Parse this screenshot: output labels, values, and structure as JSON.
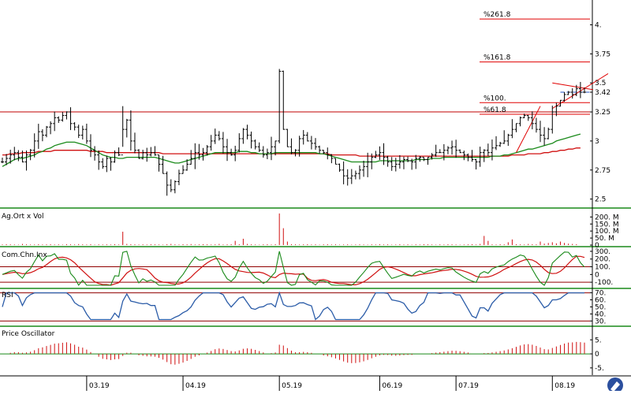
{
  "chart_data": {
    "type": "ohlc",
    "x_axis": {
      "tick_labels": [
        "03.19",
        "04.19",
        "05.19",
        "06.19",
        "07.19",
        "08.19"
      ],
      "tick_bars": [
        21,
        45,
        69,
        94,
        113,
        137
      ]
    },
    "price_panel": {
      "y_ticks": [
        "4.",
        "3.75",
        "3.5",
        "3.42",
        "3.25",
        "3",
        "2.75",
        "2.5"
      ],
      "y_tick_values": [
        4.0,
        3.75,
        3.5,
        3.42,
        3.25,
        3.0,
        2.75,
        2.5
      ],
      "ylim": [
        2.45,
        4.2
      ],
      "current_price": 3.42,
      "horizontal_line": 3.25,
      "fibonacci_levels": [
        {
          "label": "%261.8",
          "value": 4.05
        },
        {
          "label": "%161.8",
          "value": 3.68
        },
        {
          "label": "%100.",
          "value": 3.33
        },
        {
          "label": "%61.8",
          "value": 3.23
        }
      ],
      "close": [
        2.82,
        2.85,
        2.88,
        2.9,
        2.86,
        2.82,
        2.88,
        2.92,
        3.0,
        3.08,
        3.05,
        3.12,
        3.15,
        3.2,
        3.18,
        3.22,
        3.25,
        3.15,
        3.12,
        3.05,
        3.1,
        3.0,
        2.92,
        2.88,
        2.82,
        2.78,
        2.85,
        2.82,
        2.9,
        2.88,
        3.1,
        3.18,
        3.0,
        2.92,
        2.85,
        2.9,
        2.88,
        2.9,
        2.88,
        2.8,
        2.72,
        2.62,
        2.58,
        2.65,
        2.72,
        2.75,
        2.8,
        2.85,
        2.9,
        2.88,
        2.9,
        2.95,
        3.0,
        3.05,
        3.02,
        2.95,
        2.9,
        2.88,
        2.92,
        3.02,
        3.1,
        3.05,
        3.0,
        2.95,
        2.92,
        2.88,
        2.9,
        2.95,
        3.0,
        3.6,
        3.1,
        2.95,
        2.9,
        2.92,
        3.02,
        3.05,
        3.0,
        2.98,
        2.95,
        2.92,
        2.9,
        2.88,
        2.85,
        2.8,
        2.75,
        2.7,
        2.68,
        2.7,
        2.72,
        2.75,
        2.78,
        2.82,
        2.86,
        2.88,
        2.9,
        2.86,
        2.82,
        2.78,
        2.8,
        2.82,
        2.84,
        2.83,
        2.82,
        2.85,
        2.86,
        2.84,
        2.86,
        2.88,
        2.9,
        2.9,
        2.92,
        2.94,
        2.95,
        2.92,
        2.9,
        2.88,
        2.86,
        2.84,
        2.82,
        2.9,
        2.92,
        2.9,
        2.94,
        2.96,
        2.98,
        3.0,
        3.05,
        3.1,
        3.15,
        3.2,
        3.22,
        3.2,
        3.15,
        3.1,
        3.05,
        3.02,
        3.1,
        3.25,
        3.3,
        3.35,
        3.4,
        3.42,
        3.4,
        3.45,
        3.42,
        3.42
      ],
      "ma_green": [
        2.78,
        2.8,
        2.82,
        2.84,
        2.85,
        2.85,
        2.86,
        2.87,
        2.88,
        2.9,
        2.91,
        2.93,
        2.94,
        2.96,
        2.97,
        2.98,
        2.99,
        2.99,
        2.99,
        2.98,
        2.97,
        2.96,
        2.94,
        2.92,
        2.9,
        2.88,
        2.87,
        2.86,
        2.86,
        2.85,
        2.85,
        2.86,
        2.86,
        2.86,
        2.86,
        2.86,
        2.86,
        2.86,
        2.86,
        2.85,
        2.84,
        2.83,
        2.82,
        2.81,
        2.81,
        2.82,
        2.83,
        2.84,
        2.85,
        2.86,
        2.87,
        2.88,
        2.89,
        2.9,
        2.9,
        2.9,
        2.9,
        2.9,
        2.9,
        2.91,
        2.91,
        2.91,
        2.9,
        2.9,
        2.89,
        2.89,
        2.89,
        2.89,
        2.9,
        2.9,
        2.9,
        2.9,
        2.9,
        2.9,
        2.9,
        2.9,
        2.9,
        2.9,
        2.9,
        2.89,
        2.89,
        2.88,
        2.87,
        2.86,
        2.85,
        2.84,
        2.83,
        2.82,
        2.82,
        2.82,
        2.82,
        2.82,
        2.82,
        2.82,
        2.83,
        2.83,
        2.83,
        2.83,
        2.83,
        2.83,
        2.83,
        2.83,
        2.83,
        2.84,
        2.84,
        2.84,
        2.84,
        2.85,
        2.85,
        2.85,
        2.86,
        2.86,
        2.86,
        2.86,
        2.86,
        2.86,
        2.86,
        2.86,
        2.86,
        2.86,
        2.86,
        2.86,
        2.87,
        2.87,
        2.87,
        2.88,
        2.88,
        2.89,
        2.9,
        2.91,
        2.92,
        2.93,
        2.93,
        2.94,
        2.95,
        2.96,
        2.97,
        2.98,
        3.0,
        3.01,
        3.02,
        3.03,
        3.04,
        3.05,
        3.06
      ],
      "ma_red": [
        2.88,
        2.88,
        2.89,
        2.89,
        2.89,
        2.9,
        2.9,
        2.9,
        2.9,
        2.91,
        2.91,
        2.91,
        2.91,
        2.92,
        2.92,
        2.92,
        2.92,
        2.92,
        2.92,
        2.92,
        2.92,
        2.92,
        2.91,
        2.91,
        2.91,
        2.91,
        2.9,
        2.9,
        2.9,
        2.9,
        2.9,
        2.9,
        2.9,
        2.9,
        2.9,
        2.9,
        2.9,
        2.9,
        2.9,
        2.9,
        2.89,
        2.89,
        2.89,
        2.89,
        2.89,
        2.89,
        2.89,
        2.89,
        2.89,
        2.89,
        2.89,
        2.89,
        2.89,
        2.89,
        2.89,
        2.89,
        2.89,
        2.89,
        2.89,
        2.89,
        2.89,
        2.89,
        2.89,
        2.89,
        2.89,
        2.89,
        2.89,
        2.89,
        2.89,
        2.89,
        2.89,
        2.89,
        2.89,
        2.89,
        2.89,
        2.89,
        2.89,
        2.89,
        2.89,
        2.89,
        2.89,
        2.89,
        2.88,
        2.88,
        2.88,
        2.88,
        2.88,
        2.88,
        2.88,
        2.87,
        2.87,
        2.87,
        2.87,
        2.87,
        2.87,
        2.87,
        2.87,
        2.87,
        2.87,
        2.87,
        2.87,
        2.87,
        2.87,
        2.87,
        2.87,
        2.87,
        2.87,
        2.87,
        2.87,
        2.87,
        2.87,
        2.87,
        2.87,
        2.87,
        2.87,
        2.87,
        2.87,
        2.87,
        2.87,
        2.87,
        2.87,
        2.87,
        2.87,
        2.87,
        2.87,
        2.87,
        2.87,
        2.88,
        2.88,
        2.88,
        2.88,
        2.89,
        2.89,
        2.89,
        2.89,
        2.9,
        2.9,
        2.91,
        2.91,
        2.92,
        2.92,
        2.93,
        2.93,
        2.94,
        2.94
      ]
    },
    "volume_panel": {
      "title": "Ag.Ort x Vol",
      "y_ticks": [
        "200. M",
        "150. M",
        "100. M",
        "50. M",
        "0"
      ],
      "y_tick_values": [
        200,
        150,
        100,
        50,
        0
      ],
      "ylim": [
        0,
        230
      ],
      "values": [
        4,
        6,
        5,
        4,
        3,
        8,
        5,
        4,
        4,
        6,
        4,
        5,
        6,
        4,
        5,
        3,
        6,
        5,
        4,
        7,
        5,
        4,
        6,
        3,
        5,
        4,
        5,
        4,
        6,
        4,
        95,
        8,
        6,
        5,
        4,
        5,
        4,
        6,
        5,
        4,
        3,
        6,
        8,
        5,
        4,
        6,
        5,
        7,
        4,
        5,
        6,
        5,
        4,
        5,
        8,
        4,
        5,
        6,
        30,
        6,
        45,
        8,
        5,
        4,
        3,
        5,
        6,
        4,
        6,
        225,
        120,
        25,
        6,
        5,
        4,
        5,
        6,
        4,
        5,
        3,
        5,
        6,
        4,
        5,
        3,
        4,
        5,
        3,
        4,
        5,
        4,
        3,
        5,
        4,
        6,
        4,
        5,
        3,
        4,
        6,
        4,
        5,
        3,
        5,
        4,
        6,
        5,
        4,
        3,
        5,
        4,
        6,
        5,
        4,
        3,
        4,
        5,
        6,
        4,
        8,
        65,
        30,
        5,
        4,
        6,
        5,
        20,
        40,
        6,
        5,
        4,
        8,
        6,
        5,
        25,
        10,
        15,
        20,
        12,
        25,
        15,
        10,
        8,
        6
      ]
    },
    "cci_panel": {
      "title": "Com.Chn.Inx",
      "y_ticks": [
        "300.",
        "200.",
        "100.",
        "0",
        "-100."
      ],
      "y_tick_values": [
        300,
        200,
        100,
        0,
        -100
      ],
      "ylim": [
        -160,
        330
      ],
      "reference_lines": [
        100,
        -100
      ]
    },
    "rsi_panel": {
      "title": "RSI",
      "y_ticks": [
        "70.",
        "60.",
        "50.",
        "40.",
        "30."
      ],
      "y_tick_values": [
        70,
        60,
        50,
        40,
        30
      ],
      "ylim": [
        27,
        74
      ],
      "reference_lines": [
        70,
        30
      ]
    },
    "price_oscillator_panel": {
      "title": "Price Oscillator",
      "y_ticks": [
        "5.",
        "0",
        "-5."
      ],
      "y_tick_values": [
        5,
        0,
        -5
      ],
      "ylim": [
        -7,
        9
      ]
    }
  }
}
